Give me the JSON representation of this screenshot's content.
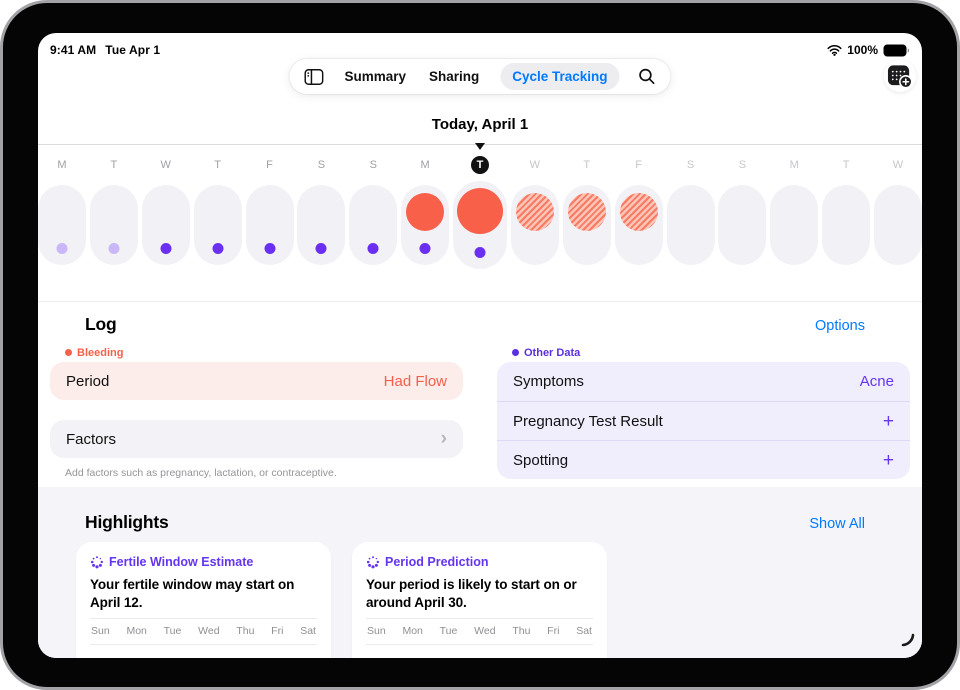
{
  "status_bar": {
    "time": "9:41 AM",
    "date": "Tue Apr 1",
    "battery": "100%"
  },
  "nav": {
    "items": [
      {
        "label": "Summary",
        "active": false
      },
      {
        "label": "Sharing",
        "active": false
      },
      {
        "label": "Cycle Tracking",
        "active": true
      }
    ]
  },
  "header": {
    "today_title": "Today, April 1"
  },
  "day_strip": {
    "days": [
      {
        "letter": "M",
        "dot": "light",
        "period": null,
        "today": false
      },
      {
        "letter": "T",
        "dot": "light",
        "period": null,
        "today": false
      },
      {
        "letter": "W",
        "dot": "solid",
        "period": null,
        "today": false
      },
      {
        "letter": "T",
        "dot": "solid",
        "period": null,
        "today": false
      },
      {
        "letter": "F",
        "dot": "solid",
        "period": null,
        "today": false
      },
      {
        "letter": "S",
        "dot": "solid",
        "period": null,
        "today": false
      },
      {
        "letter": "S",
        "dot": "solid",
        "period": null,
        "today": false
      },
      {
        "letter": "M",
        "dot": "solid",
        "period": "solid",
        "today": false
      },
      {
        "letter": "T",
        "dot": "solid",
        "period": "solid",
        "today": true
      },
      {
        "letter": "W",
        "dot": null,
        "period": "predicted",
        "today": false
      },
      {
        "letter": "T",
        "dot": null,
        "period": "predicted",
        "today": false
      },
      {
        "letter": "F",
        "dot": null,
        "period": "predicted",
        "today": false
      },
      {
        "letter": "S",
        "dot": null,
        "period": null,
        "today": false
      },
      {
        "letter": "S",
        "dot": null,
        "period": null,
        "today": false
      },
      {
        "letter": "M",
        "dot": null,
        "period": null,
        "today": false
      },
      {
        "letter": "T",
        "dot": null,
        "period": null,
        "today": false
      },
      {
        "letter": "W",
        "dot": null,
        "period": null,
        "today": false
      }
    ]
  },
  "log": {
    "title": "Log",
    "options_label": "Options",
    "bleeding": {
      "label": "Bleeding"
    },
    "period_row": {
      "name": "Period",
      "value": "Had Flow"
    },
    "factors": {
      "label": "Factors",
      "chevron": "›",
      "caption": "Add factors such as pregnancy, lactation, or contraceptive."
    },
    "other_data": {
      "label": "Other Data",
      "rows": [
        {
          "name": "Symptoms",
          "value": "Acne"
        },
        {
          "name": "Pregnancy Test Result",
          "value": "+"
        },
        {
          "name": "Spotting",
          "value": "+"
        }
      ]
    }
  },
  "highlights": {
    "title": "Highlights",
    "show_all_label": "Show All",
    "cards": [
      {
        "title": "Fertile Window Estimate",
        "body": "Your fertile window may start on April 12.",
        "weekdays": [
          "Sun",
          "Mon",
          "Tue",
          "Wed",
          "Thu",
          "Fri",
          "Sat"
        ]
      },
      {
        "title": "Period Prediction",
        "body": "Your period is likely to start on or around April 30.",
        "weekdays": [
          "Sun",
          "Mon",
          "Tue",
          "Wed",
          "Thu",
          "Fri",
          "Sat"
        ]
      }
    ]
  },
  "colors": {
    "accent_blue": "#007AFF",
    "period_red": "#F8604A",
    "bleeding_red": "#F5604A",
    "purple": "#6B2FF2",
    "purple_light": "#C9B7F7",
    "purple_text": "#6535F0",
    "label_purple": "#5A2FE0",
    "pink_bg": "#FCECEA",
    "gray_bg": "#F3F2F6",
    "lavender_bg": "#F0EDFC",
    "highlights_bg": "#F5F4F8"
  }
}
